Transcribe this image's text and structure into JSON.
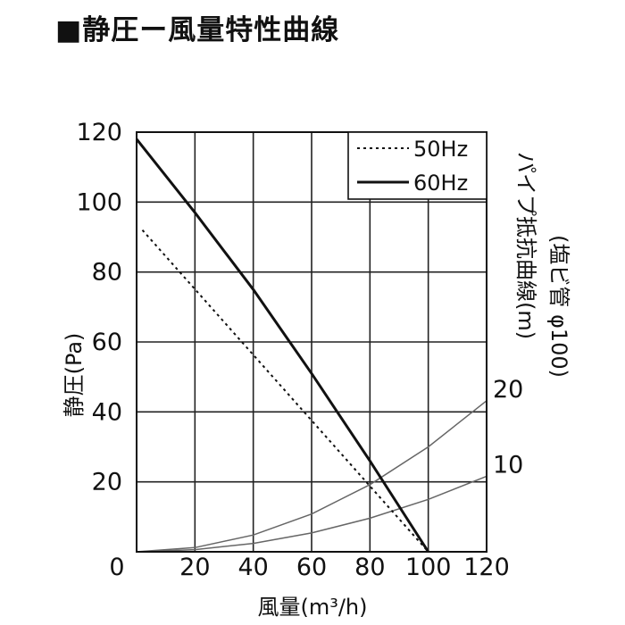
{
  "title": "■静圧ー風量特性曲線",
  "chart_data": {
    "type": "line",
    "xlabel": "風量(m³/h)",
    "ylabel": "静圧(Pa)",
    "y2label_line1": "パイプ抵抗曲線(m)",
    "y2label_line2": "(塩ビ管 φ100)",
    "xlim": [
      0,
      120
    ],
    "ylim": [
      0,
      120
    ],
    "xticks": [
      0,
      20,
      40,
      60,
      80,
      100,
      120
    ],
    "yticks": [
      0,
      20,
      40,
      60,
      80,
      100,
      120
    ],
    "grid": true,
    "legend_position": "top-right",
    "series": [
      {
        "name": "50Hz",
        "style": "dotted",
        "x": [
          2,
          100
        ],
        "y": [
          92,
          0
        ]
      },
      {
        "name": "60Hz",
        "style": "solid",
        "x": [
          0,
          20,
          40,
          60,
          80,
          100
        ],
        "y": [
          118,
          97,
          75,
          51,
          26,
          0
        ]
      }
    ],
    "resistance_curves": [
      {
        "label": "20",
        "x": [
          0,
          20,
          40,
          60,
          80,
          100,
          120
        ],
        "y": [
          0,
          1.2,
          4.8,
          10.8,
          19.2,
          30,
          43.2
        ]
      },
      {
        "label": "10",
        "x": [
          0,
          20,
          40,
          60,
          80,
          100,
          120
        ],
        "y": [
          0,
          0.6,
          2.4,
          5.4,
          9.6,
          15,
          21.6
        ]
      }
    ]
  }
}
